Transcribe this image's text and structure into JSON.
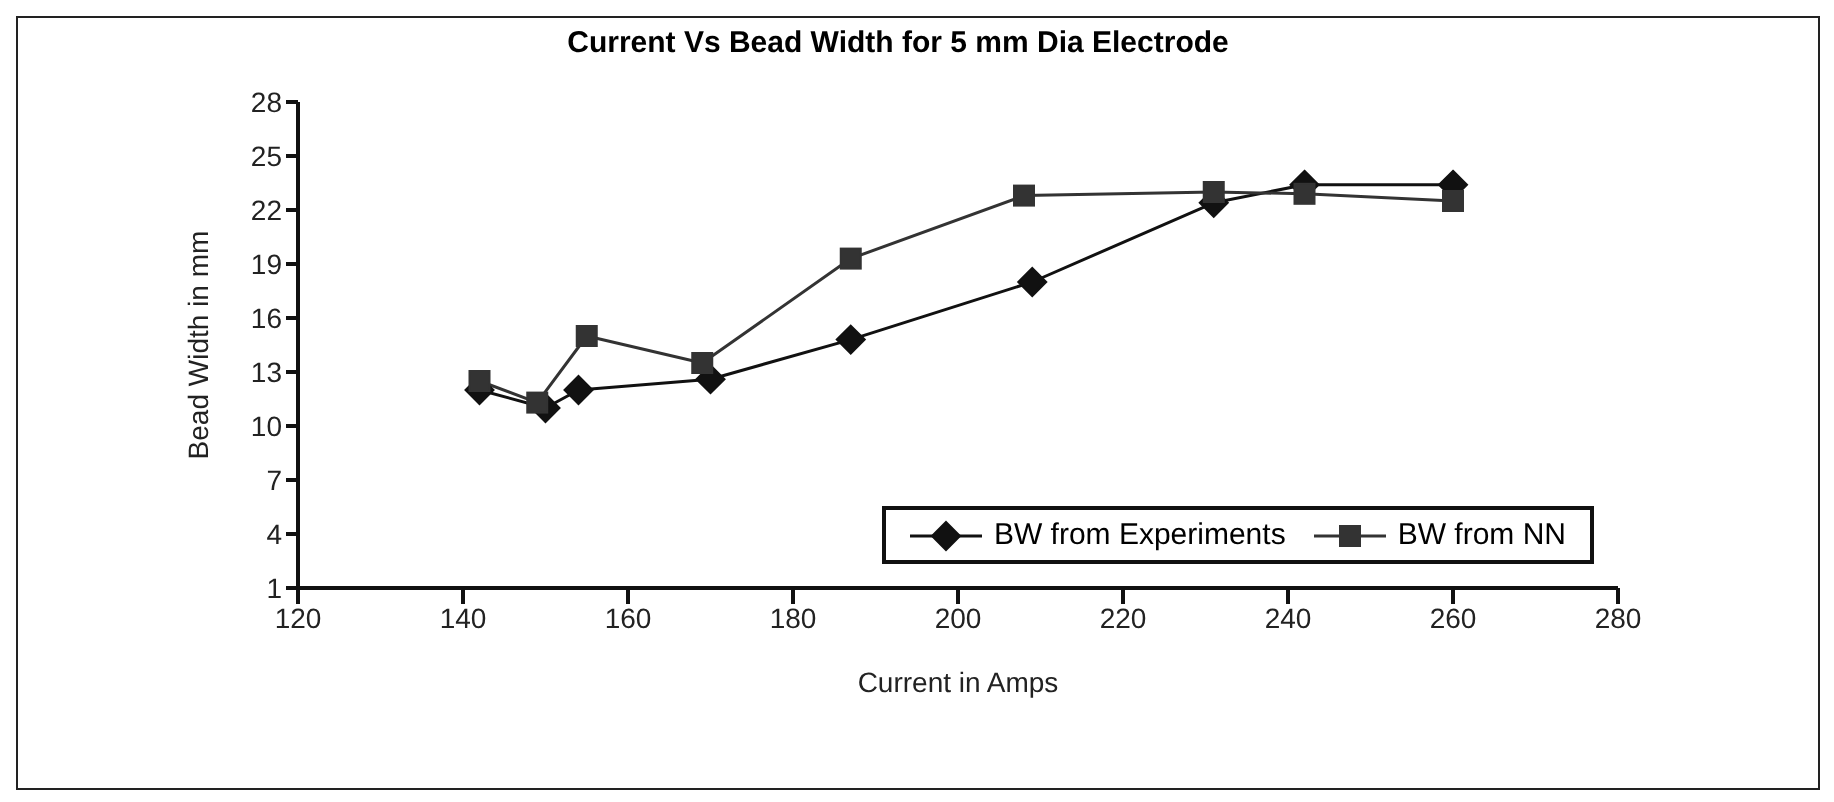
{
  "chart_data": {
    "type": "line",
    "title": "Current Vs Bead Width for 5 mm Dia Electrode",
    "xlabel": "Current in Amps",
    "ylabel": "Bead Width in mm",
    "xlim": [
      120,
      280
    ],
    "xticks": [
      120,
      140,
      160,
      180,
      200,
      220,
      240,
      260,
      280
    ],
    "ylim": [
      1,
      28
    ],
    "yticks": [
      1,
      4,
      7,
      10,
      13,
      16,
      19,
      22,
      25,
      28
    ],
    "grid": false,
    "legend": "bottom right",
    "line_style": "solid",
    "series": [
      {
        "name": "BW from Experiments",
        "color": "#111111",
        "marker": "diamond",
        "x": [
          142,
          150,
          154,
          170,
          187,
          209,
          231,
          242,
          260
        ],
        "values": [
          12,
          11,
          12,
          12.6,
          14.8,
          18,
          22.4,
          23.4,
          23.4
        ]
      },
      {
        "name": "BW from NN",
        "color": "#333333",
        "marker": "square",
        "x": [
          142,
          149,
          155,
          169,
          187,
          208,
          231,
          242,
          260
        ],
        "values": [
          12.5,
          11.3,
          15,
          13.5,
          19.3,
          22.8,
          23,
          22.9,
          22.5
        ]
      }
    ]
  }
}
